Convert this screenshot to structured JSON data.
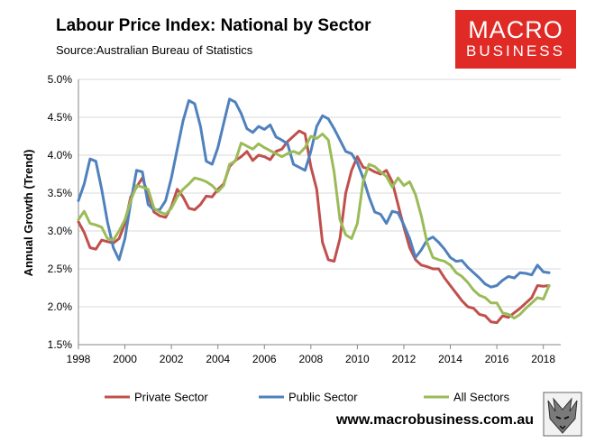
{
  "header": {
    "title": "Labour Price Index: National by Sector",
    "source": "Source:Australian Bureau of Statistics"
  },
  "logo": {
    "line1": "MACRO",
    "line2": "BUSINESS"
  },
  "footer": {
    "url": "www.macrobusiness.com.au"
  },
  "chart_data": {
    "type": "line",
    "title": "Labour Price Index: National by Sector",
    "ylabel": "Annual Growth (Trend)",
    "xlabel": "",
    "xlim": [
      1998,
      2018.75
    ],
    "ylim": [
      1.5,
      5.0
    ],
    "xticks": [
      "1998",
      "2000",
      "2002",
      "2004",
      "2006",
      "2008",
      "2010",
      "2012",
      "2014",
      "2016",
      "2018"
    ],
    "yticks": [
      "1.5%",
      "2.0%",
      "2.5%",
      "3.0%",
      "3.5%",
      "4.0%",
      "4.5%",
      "5.0%"
    ],
    "legend_position": "bottom",
    "colors": {
      "private": "#c0504d",
      "public": "#4f81bd",
      "all": "#9bbb59"
    },
    "x_start": 1998.0,
    "x_step": 0.25,
    "series": [
      {
        "name": "Private Sector",
        "key": "private",
        "values": [
          3.12,
          2.98,
          2.78,
          2.76,
          2.88,
          2.86,
          2.84,
          2.9,
          3.1,
          3.45,
          3.58,
          3.7,
          3.48,
          3.25,
          3.2,
          3.18,
          3.32,
          3.55,
          3.45,
          3.3,
          3.28,
          3.35,
          3.46,
          3.45,
          3.55,
          3.62,
          3.85,
          3.93,
          3.98,
          4.05,
          3.93,
          4.0,
          3.98,
          3.94,
          4.05,
          4.08,
          4.18,
          4.25,
          4.32,
          4.28,
          3.85,
          3.55,
          2.85,
          2.62,
          2.6,
          2.9,
          3.5,
          3.8,
          3.98,
          3.84,
          3.82,
          3.78,
          3.75,
          3.8,
          3.65,
          3.35,
          3.05,
          2.78,
          2.62,
          2.55,
          2.53,
          2.5,
          2.5,
          2.38,
          2.28,
          2.18,
          2.08,
          2.0,
          1.98,
          1.9,
          1.88,
          1.8,
          1.79,
          1.88,
          1.86,
          1.92,
          1.98,
          2.05,
          2.12,
          2.28,
          2.27,
          2.28
        ]
      },
      {
        "name": "Public Sector",
        "key": "public",
        "values": [
          3.4,
          3.62,
          3.95,
          3.92,
          3.55,
          3.12,
          2.78,
          2.62,
          2.9,
          3.38,
          3.8,
          3.78,
          3.35,
          3.28,
          3.28,
          3.4,
          3.7,
          4.08,
          4.45,
          4.72,
          4.68,
          4.38,
          3.92,
          3.88,
          4.1,
          4.42,
          4.74,
          4.7,
          4.55,
          4.35,
          4.3,
          4.38,
          4.34,
          4.4,
          4.24,
          4.2,
          4.15,
          3.88,
          3.84,
          3.8,
          4.05,
          4.38,
          4.52,
          4.48,
          4.35,
          4.2,
          4.05,
          4.02,
          3.9,
          3.7,
          3.45,
          3.25,
          3.22,
          3.1,
          3.26,
          3.24,
          3.08,
          2.9,
          2.65,
          2.75,
          2.88,
          2.92,
          2.85,
          2.76,
          2.65,
          2.6,
          2.61,
          2.52,
          2.45,
          2.38,
          2.3,
          2.26,
          2.28,
          2.35,
          2.4,
          2.38,
          2.45,
          2.44,
          2.42,
          2.55,
          2.46,
          2.45
        ]
      },
      {
        "name": "All Sectors",
        "key": "all",
        "values": [
          3.15,
          3.26,
          3.1,
          3.08,
          3.05,
          2.9,
          2.88,
          3.0,
          3.15,
          3.4,
          3.6,
          3.58,
          3.55,
          3.3,
          3.25,
          3.22,
          3.3,
          3.45,
          3.55,
          3.62,
          3.7,
          3.68,
          3.65,
          3.6,
          3.52,
          3.6,
          3.88,
          3.92,
          4.16,
          4.12,
          4.08,
          4.15,
          4.1,
          4.06,
          4.02,
          3.98,
          4.02,
          4.05,
          4.02,
          4.1,
          4.25,
          4.22,
          4.28,
          4.2,
          3.78,
          3.15,
          2.95,
          2.9,
          3.1,
          3.65,
          3.88,
          3.85,
          3.78,
          3.72,
          3.58,
          3.7,
          3.6,
          3.65,
          3.48,
          3.2,
          2.85,
          2.65,
          2.62,
          2.6,
          2.55,
          2.45,
          2.4,
          2.32,
          2.22,
          2.15,
          2.12,
          2.05,
          2.05,
          1.92,
          1.9,
          1.85,
          1.9,
          1.98,
          2.05,
          2.12,
          2.1,
          2.28
        ]
      }
    ]
  }
}
